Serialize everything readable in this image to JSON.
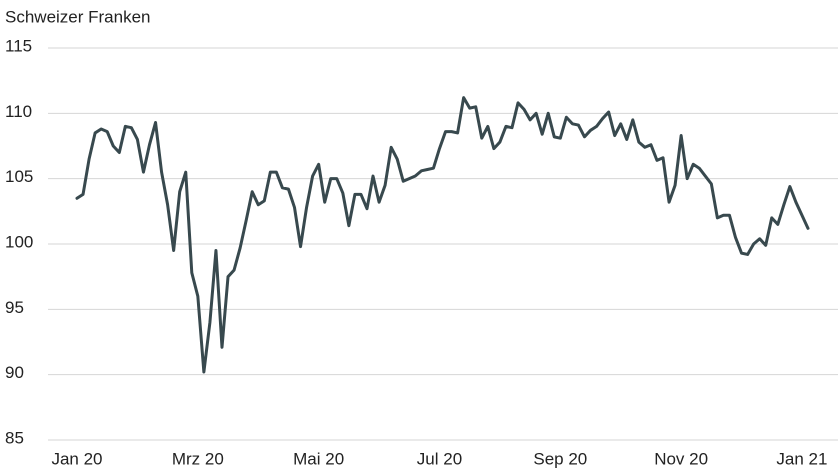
{
  "chart_data": {
    "type": "line",
    "title": "Schweizer Franken",
    "categories": [
      "Jan 20",
      null,
      null,
      null,
      null,
      null,
      null,
      null,
      null,
      null,
      null,
      null,
      null,
      null,
      null,
      null,
      null,
      null,
      null,
      null,
      "Mrz 20",
      null,
      null,
      null,
      null,
      null,
      null,
      null,
      null,
      null,
      null,
      null,
      null,
      null,
      null,
      null,
      null,
      null,
      null,
      null,
      "Mai 20",
      null,
      null,
      null,
      null,
      null,
      null,
      null,
      null,
      null,
      null,
      null,
      null,
      null,
      null,
      null,
      null,
      null,
      null,
      null,
      "Jul 20",
      null,
      null,
      null,
      null,
      null,
      null,
      null,
      null,
      null,
      null,
      null,
      null,
      null,
      null,
      null,
      null,
      null,
      null,
      null,
      "Sep 20",
      null,
      null,
      null,
      null,
      null,
      null,
      null,
      null,
      null,
      null,
      null,
      null,
      null,
      null,
      null,
      null,
      null,
      null,
      null,
      "Nov 20",
      null,
      null,
      null,
      null,
      null,
      null,
      null,
      null,
      null,
      null,
      null,
      null,
      null,
      null,
      null,
      null,
      null,
      null,
      null,
      "Jan 21",
      null
    ],
    "values": [
      103.5,
      103.8,
      106.5,
      108.5,
      108.8,
      108.6,
      107.5,
      107,
      109,
      108.9,
      108,
      105.5,
      107.6,
      109.3,
      105.5,
      103,
      99.5,
      104,
      105.5,
      97.8,
      96,
      90.2,
      94,
      99.5,
      92.1,
      97.5,
      98,
      99.7,
      101.8,
      104,
      103,
      103.3,
      105.5,
      105.5,
      104.3,
      104.2,
      102.8,
      99.8,
      102.8,
      105.2,
      106.1,
      103.2,
      105,
      105,
      103.9,
      101.4,
      103.8,
      103.8,
      102.7,
      105.2,
      103.2,
      104.5,
      107.4,
      106.5,
      104.8,
      105,
      105.2,
      105.6,
      105.7,
      105.8,
      107.3,
      108.6,
      108.6,
      108.5,
      111.2,
      110.4,
      110.5,
      108.1,
      109,
      107.3,
      107.8,
      109,
      108.9,
      110.8,
      110.3,
      109.5,
      110,
      108.4,
      110,
      108.2,
      108.1,
      109.7,
      109.2,
      109.1,
      108.2,
      108.7,
      109,
      109.6,
      110.1,
      108.3,
      109.2,
      108,
      109.5,
      107.8,
      107.4,
      107.6,
      106.4,
      106.6,
      103.2,
      104.5,
      108.3,
      105,
      106.1,
      105.8,
      105.2,
      104.6,
      102,
      102.2,
      102.2,
      100.5,
      99.3,
      99.2,
      100,
      100.4,
      99.9,
      102,
      101.5,
      103,
      104.4,
      103.2,
      102.2,
      101.2
    ],
    "color": "#38494e",
    "ylim": [
      85,
      115
    ],
    "yticks": [
      85,
      90,
      95,
      100,
      105,
      110,
      115
    ],
    "grid": true
  }
}
